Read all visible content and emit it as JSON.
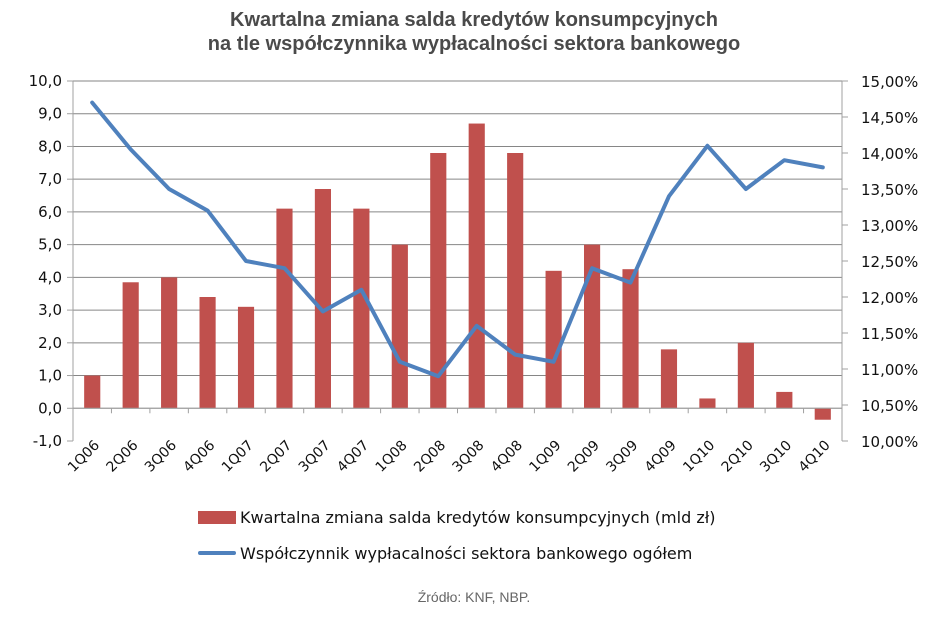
{
  "chart_data": {
    "type": "bar+line",
    "title": "Kwartalna zmiana salda kredytów konsumpcyjnych na tle współczynnika wypłacalności sektora bankowego",
    "title_lines": [
      "Kwartalna zmiana salda kredytów konsumpcyjnych",
      "na tle współczynnika wypłacalności sektora bankowego"
    ],
    "categories": [
      "1Q06",
      "2Q06",
      "3Q06",
      "4Q06",
      "1Q07",
      "2Q07",
      "3Q07",
      "4Q07",
      "1Q08",
      "2Q08",
      "3Q08",
      "4Q08",
      "1Q09",
      "2Q09",
      "3Q09",
      "4Q09",
      "1Q10",
      "2Q10",
      "3Q10",
      "4Q10"
    ],
    "series": [
      {
        "name": "Kwartalna zmiana salda kredytów konsumpcyjnych (mld zł)",
        "type": "bar",
        "axis": "left",
        "color": "#c0504d",
        "values": [
          1.0,
          3.85,
          4.0,
          3.4,
          3.1,
          6.1,
          6.7,
          6.1,
          5.0,
          7.8,
          8.7,
          7.8,
          4.2,
          5.0,
          4.25,
          1.8,
          0.3,
          2.0,
          0.5,
          -0.35
        ]
      },
      {
        "name": "Współczynnik wypłacalności sektora bankowego ogółem",
        "type": "line",
        "axis": "right",
        "color": "#4f81bd",
        "values": [
          14.7,
          14.05,
          13.5,
          13.2,
          12.5,
          12.4,
          11.8,
          12.1,
          11.1,
          10.9,
          11.6,
          11.2,
          11.1,
          12.4,
          12.2,
          13.4,
          14.1,
          13.5,
          13.9,
          13.8
        ]
      }
    ],
    "left_axis": {
      "min": -1.0,
      "max": 10.0,
      "step": 1.0,
      "ticks": [
        "10,0",
        "9,0",
        "8,0",
        "7,0",
        "6,0",
        "5,0",
        "4,0",
        "3,0",
        "2,0",
        "1,0",
        "0,0",
        "-1,0"
      ]
    },
    "right_axis": {
      "min": 10.0,
      "max": 15.0,
      "step": 0.5,
      "ticks": [
        "15,00%",
        "14,50%",
        "14,00%",
        "13,50%",
        "13,00%",
        "12,50%",
        "12,00%",
        "11,50%",
        "11,00%",
        "10,50%",
        "10,00%"
      ]
    },
    "xlabel": "",
    "ylabel": "",
    "grid": true,
    "legend_position": "bottom"
  },
  "legend": {
    "bar_label": "Kwartalna zmiana salda kredytów konsumpcyjnych (mld zł)",
    "line_label": "Współczynnik wypłacalności sektora bankowego ogółem"
  },
  "source": "Źródło: KNF, NBP.",
  "colors": {
    "bar": "#c0504d",
    "line": "#4f81bd",
    "grid": "#868686",
    "axis": "#a0a0a0",
    "title": "#4a4a4a"
  }
}
